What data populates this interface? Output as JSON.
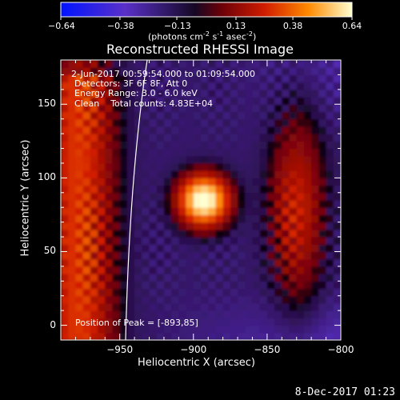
{
  "colorbar": {
    "ticks": [
      "-0.64",
      "-0.38",
      "-0.13",
      "0.13",
      "0.38",
      "0.64"
    ],
    "units_main": "(photons cm",
    "units_sup1": "-2",
    "units_mid": " s",
    "units_sup2": "-1",
    "units_end": " asec",
    "units_sup3": "-2",
    "units_close": ")",
    "range": [
      -0.64,
      0.64
    ]
  },
  "chart_data": {
    "type": "heatmap",
    "title": "Reconstructed RHESSI Image",
    "xlabel": "Heliocentric X (arcsec)",
    "ylabel": "Heliocentric Y (arcsec)",
    "xlim": [
      -990,
      -800
    ],
    "ylim": [
      -10,
      180
    ],
    "x_ticks": [
      -950,
      -900,
      -850,
      -800
    ],
    "y_ticks": [
      0,
      50,
      100,
      150
    ],
    "x_tick_labels": [
      "−950",
      "−900",
      "−850",
      "−800"
    ],
    "y_tick_labels": [
      "0",
      "50",
      "100",
      "150"
    ],
    "annotations": [
      "2-Jun-2017 00:59:54.000 to 01:09:54.000",
      "Detectors: 3F 6F 8F, Att 0",
      "Energy Range: 3.0 - 6.0 keV",
      "Clean    Total counts: 4.83E+04"
    ],
    "peak_label": "Position of Peak = [-893,85]",
    "peak": {
      "x": -893,
      "y": 85
    },
    "colors": [
      "#0000ff",
      "#5a2fb0",
      "#000000",
      "#c81e00",
      "#ff8c00",
      "#ffff96"
    ]
  },
  "footer": {
    "timestamp": "8-Dec-2017 01:23"
  }
}
